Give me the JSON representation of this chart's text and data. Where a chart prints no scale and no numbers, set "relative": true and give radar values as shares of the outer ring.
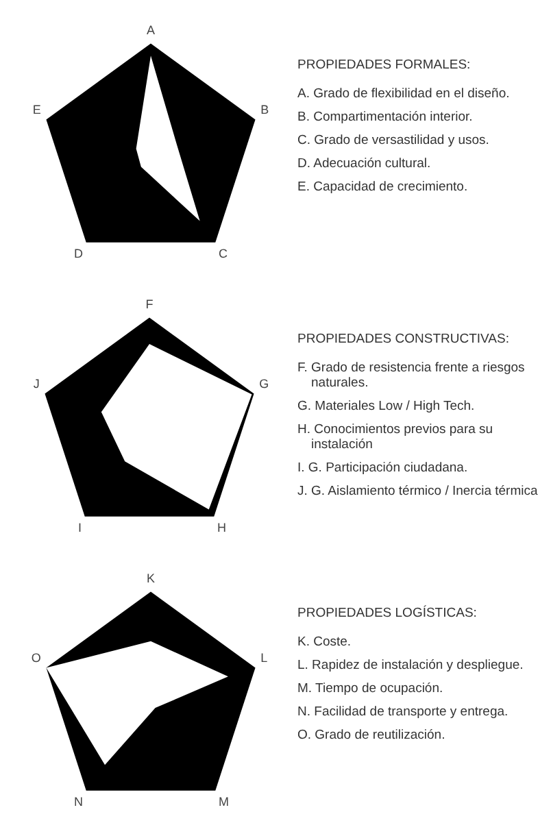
{
  "chart_data": [
    {
      "type": "radar",
      "relative": true,
      "title": "PROPIEDADES FORMALES:",
      "categories": [
        "A",
        "B",
        "C",
        "D",
        "E"
      ],
      "grid": false,
      "legend": false,
      "marker": "none",
      "series": [
        {
          "color": "#ffffff",
          "values": [
            0.89,
            0.25,
            0.76,
            0.15,
            0.14
          ]
        }
      ],
      "annotations": [
        "A. Grado de flexibilidad en el diseño.",
        "B. Compartimentación interior.",
        "C. Grado de versastilidad y usos.",
        "D. Adecuación cultural.",
        "E. Capacidad de crecimiento."
      ]
    },
    {
      "type": "radar",
      "relative": true,
      "title": "PROPIEDADES CONSTRUCTIVAS:",
      "categories": [
        "F",
        "G",
        "H",
        "I",
        "J"
      ],
      "grid": false,
      "legend": false,
      "marker": "none",
      "series": [
        {
          "color": "#ffffff",
          "values": [
            0.76,
            0.98,
            0.92,
            0.38,
            0.46
          ]
        }
      ],
      "annotations": [
        "F. Grado de resistencia frente a riesgos naturales.",
        "G. Materiales Low / High Tech.",
        "H. Conocimientos previos para su instalación",
        "I. G. Participación ciudadana.",
        "J. G. Aislamiento térmico / Inercia térmica"
      ]
    },
    {
      "type": "radar",
      "relative": true,
      "title": "PROPIEDADES LOGÍSTICAS:",
      "categories": [
        "K",
        "L",
        "M",
        "N",
        "O"
      ],
      "grid": false,
      "legend": false,
      "marker": "none",
      "series": [
        {
          "color": "#ffffff",
          "values": [
            0.55,
            0.74,
            0.07,
            0.71,
            1
          ]
        }
      ],
      "annotations": [
        "K. Coste.",
        "L. Rapidez de instalación y despliegue.",
        "M. Tiempo de ocupación.",
        "N. Facilidad de transporte y entrega.",
        "O. Grado de reutilización."
      ]
    }
  ]
}
